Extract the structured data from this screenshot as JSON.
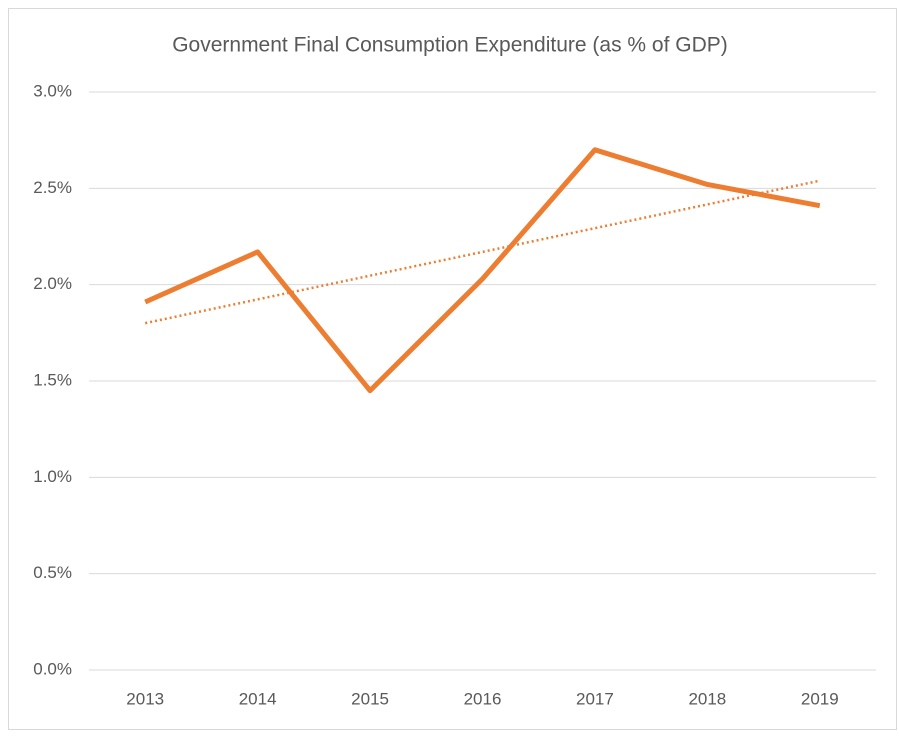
{
  "chart_data": {
    "type": "line",
    "title": "Government Final Consumption Expenditure (as % of GDP)",
    "categories": [
      "2013",
      "2014",
      "2015",
      "2016",
      "2017",
      "2018",
      "2019"
    ],
    "series": [
      {
        "name": "Government Final Consumption Expenditure",
        "color": "#ed7d31",
        "values": [
          1.91,
          2.17,
          1.45,
          2.03,
          2.7,
          2.52,
          2.41
        ]
      }
    ],
    "trendline": "linear",
    "ylim": [
      0,
      3
    ],
    "yticks": [
      {
        "value": 0,
        "label": "0.0%"
      },
      {
        "value": 0.5,
        "label": "0.5%"
      },
      {
        "value": 1,
        "label": "1.0%"
      },
      {
        "value": 1.5,
        "label": "1.5%"
      },
      {
        "value": 2,
        "label": "2.0%"
      },
      {
        "value": 2.5,
        "label": "2.5%"
      },
      {
        "value": 3,
        "label": "3.0%"
      }
    ],
    "grid": true
  }
}
